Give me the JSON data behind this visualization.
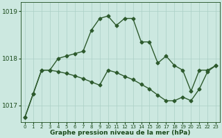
{
  "hours": [
    0,
    1,
    2,
    3,
    4,
    5,
    6,
    7,
    8,
    9,
    10,
    11,
    12,
    13,
    14,
    15,
    16,
    17,
    18,
    19,
    20,
    21,
    22,
    23
  ],
  "curve1": [
    1016.75,
    1017.25,
    1017.75,
    1017.75,
    1018.0,
    1018.05,
    1018.1,
    1018.15,
    1018.6,
    1018.85,
    1018.9,
    1018.7,
    1018.85,
    1018.85,
    1018.35,
    1018.35,
    1017.9,
    1018.05,
    1017.85,
    1017.75,
    1017.3,
    1017.75,
    1017.75,
    1017.85
  ],
  "curve2": [
    1016.75,
    1017.25,
    1017.75,
    1017.75,
    1017.72,
    1017.68,
    1017.63,
    1017.57,
    1017.5,
    1017.43,
    1017.75,
    1017.7,
    1017.62,
    1017.55,
    1017.45,
    1017.35,
    1017.22,
    1017.1,
    1017.1,
    1017.18,
    1017.1,
    1017.35,
    1017.72,
    1017.85
  ],
  "ylim": [
    1016.65,
    1019.2
  ],
  "yticks": [
    1017,
    1018,
    1019
  ],
  "xlim": [
    -0.5,
    23.5
  ],
  "bg_color": "#cce8e0",
  "line_color": "#2d5a2d",
  "grid_color": "#aacfc5",
  "xlabel": "Graphe pression niveau de la mer (hPa)",
  "xlabel_color": "#1a4a1a",
  "tick_color": "#1a4a1a",
  "marker": "D",
  "linewidth": 1.0,
  "markersize": 2.5,
  "xlabel_fontsize": 6.5,
  "ytick_fontsize": 6.5,
  "xtick_fontsize": 5.0
}
